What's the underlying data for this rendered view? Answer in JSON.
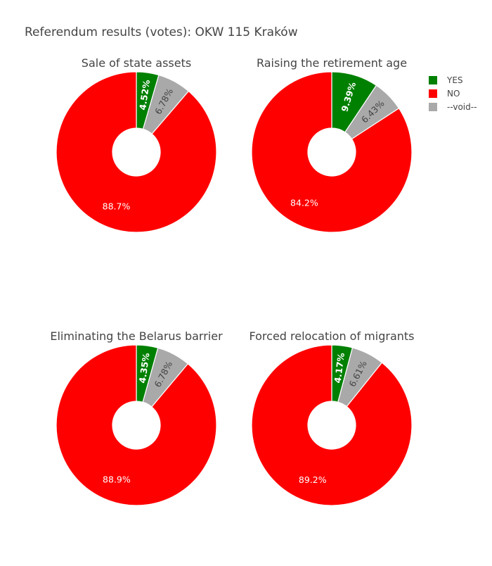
{
  "title": "Referendum results (votes): OKW 115 Kraków",
  "chart_data": [
    {
      "type": "pie",
      "title": "Sale of state assets",
      "hole": true,
      "categories": [
        "YES",
        "NO",
        "--void--"
      ],
      "values": [
        4.52,
        88.7,
        6.78
      ],
      "labels": [
        "4.52%",
        "88.7%",
        "6.78%"
      ]
    },
    {
      "type": "pie",
      "title": "Raising the retirement age",
      "hole": true,
      "categories": [
        "YES",
        "NO",
        "--void--"
      ],
      "values": [
        9.39,
        84.2,
        6.43
      ],
      "labels": [
        "9.39%",
        "84.2%",
        "6.43%"
      ]
    },
    {
      "type": "pie",
      "title": "Eliminating the Belarus barrier",
      "hole": true,
      "categories": [
        "YES",
        "NO",
        "--void--"
      ],
      "values": [
        4.35,
        88.9,
        6.78
      ],
      "labels": [
        "4.35%",
        "88.9%",
        "6.78%"
      ]
    },
    {
      "type": "pie",
      "title": "Forced relocation of migrants",
      "hole": true,
      "categories": [
        "YES",
        "NO",
        "--void--"
      ],
      "values": [
        4.17,
        89.2,
        6.61
      ],
      "labels": [
        "4.17%",
        "89.2%",
        "6.61%"
      ]
    }
  ],
  "legend": {
    "placement": "top-right",
    "items": [
      {
        "label": "YES",
        "color": "#008000"
      },
      {
        "label": "NO",
        "color": "#ff0000"
      },
      {
        "label": "--void--",
        "color": "#a9a9a9"
      }
    ]
  },
  "colors": {
    "YES": "#008000",
    "NO": "#ff0000",
    "--void--": "#a9a9a9",
    "title_text": "#444444",
    "legend_text": "#444444",
    "inside_label_light": "#ffffff",
    "inside_label_dark": "#444444"
  }
}
